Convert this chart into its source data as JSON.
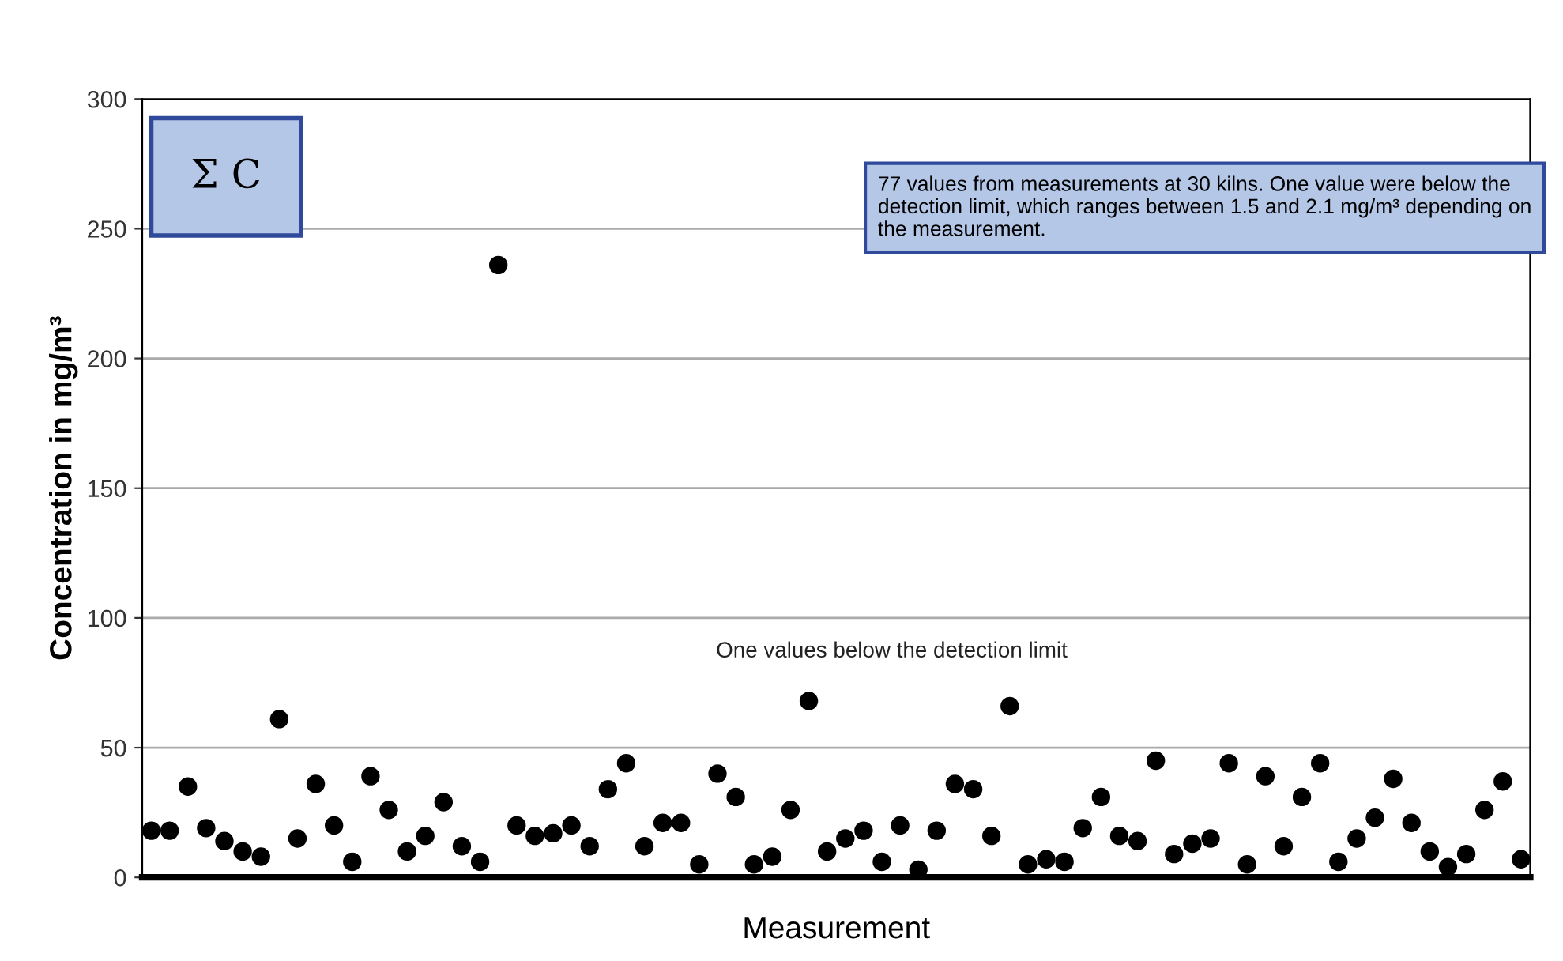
{
  "chart_data": {
    "type": "scatter",
    "title": "Σ C",
    "xlabel": "Measurement",
    "ylabel": "Concentration in mg/m³",
    "categories": [
      null,
      null,
      null,
      null,
      null,
      null,
      null,
      null,
      null,
      null,
      null,
      null,
      null,
      null,
      null,
      null,
      null,
      null,
      null,
      null,
      null,
      null,
      null,
      null,
      null,
      null,
      null,
      null,
      null,
      null,
      null,
      null,
      null,
      null,
      null,
      null,
      null,
      null,
      null,
      null,
      null,
      null,
      null,
      null,
      null,
      null,
      null,
      null,
      null,
      null,
      null,
      null,
      null,
      null,
      null,
      null,
      null,
      null,
      null,
      null,
      null,
      null,
      null,
      null,
      null,
      null,
      null,
      null,
      null,
      null,
      null,
      null,
      null,
      null,
      null,
      null
    ],
    "series": [
      {
        "color": "#000000",
        "values": [
          18,
          18,
          35,
          19,
          14,
          10,
          8,
          61,
          15,
          36,
          20,
          6,
          39,
          26,
          10,
          16,
          29,
          12,
          6,
          236,
          20,
          16,
          17,
          20,
          12,
          34,
          44,
          12,
          21,
          21,
          5,
          40,
          31,
          5,
          8,
          26,
          68,
          10,
          15,
          18,
          6,
          20,
          3,
          18,
          36,
          34,
          16,
          66,
          5,
          7,
          6,
          19,
          31,
          16,
          14,
          45,
          9,
          13,
          15,
          44,
          5,
          39,
          12,
          31,
          44,
          6,
          15,
          23,
          38,
          21,
          10,
          4,
          9,
          26,
          37,
          7
        ]
      }
    ],
    "ylim": [
      0,
      300
    ],
    "yticks": [
      0,
      50,
      100,
      150,
      200,
      250,
      300
    ],
    "grid": "y",
    "marker": "circle",
    "legend": false,
    "annotations": [
      "77 values from measurements at 30 kilns. One value were below the detection limit, which ranges between 1.5 and 2.1 mg/m³ depending on the measurement.",
      "One values below the detection limit"
    ]
  }
}
